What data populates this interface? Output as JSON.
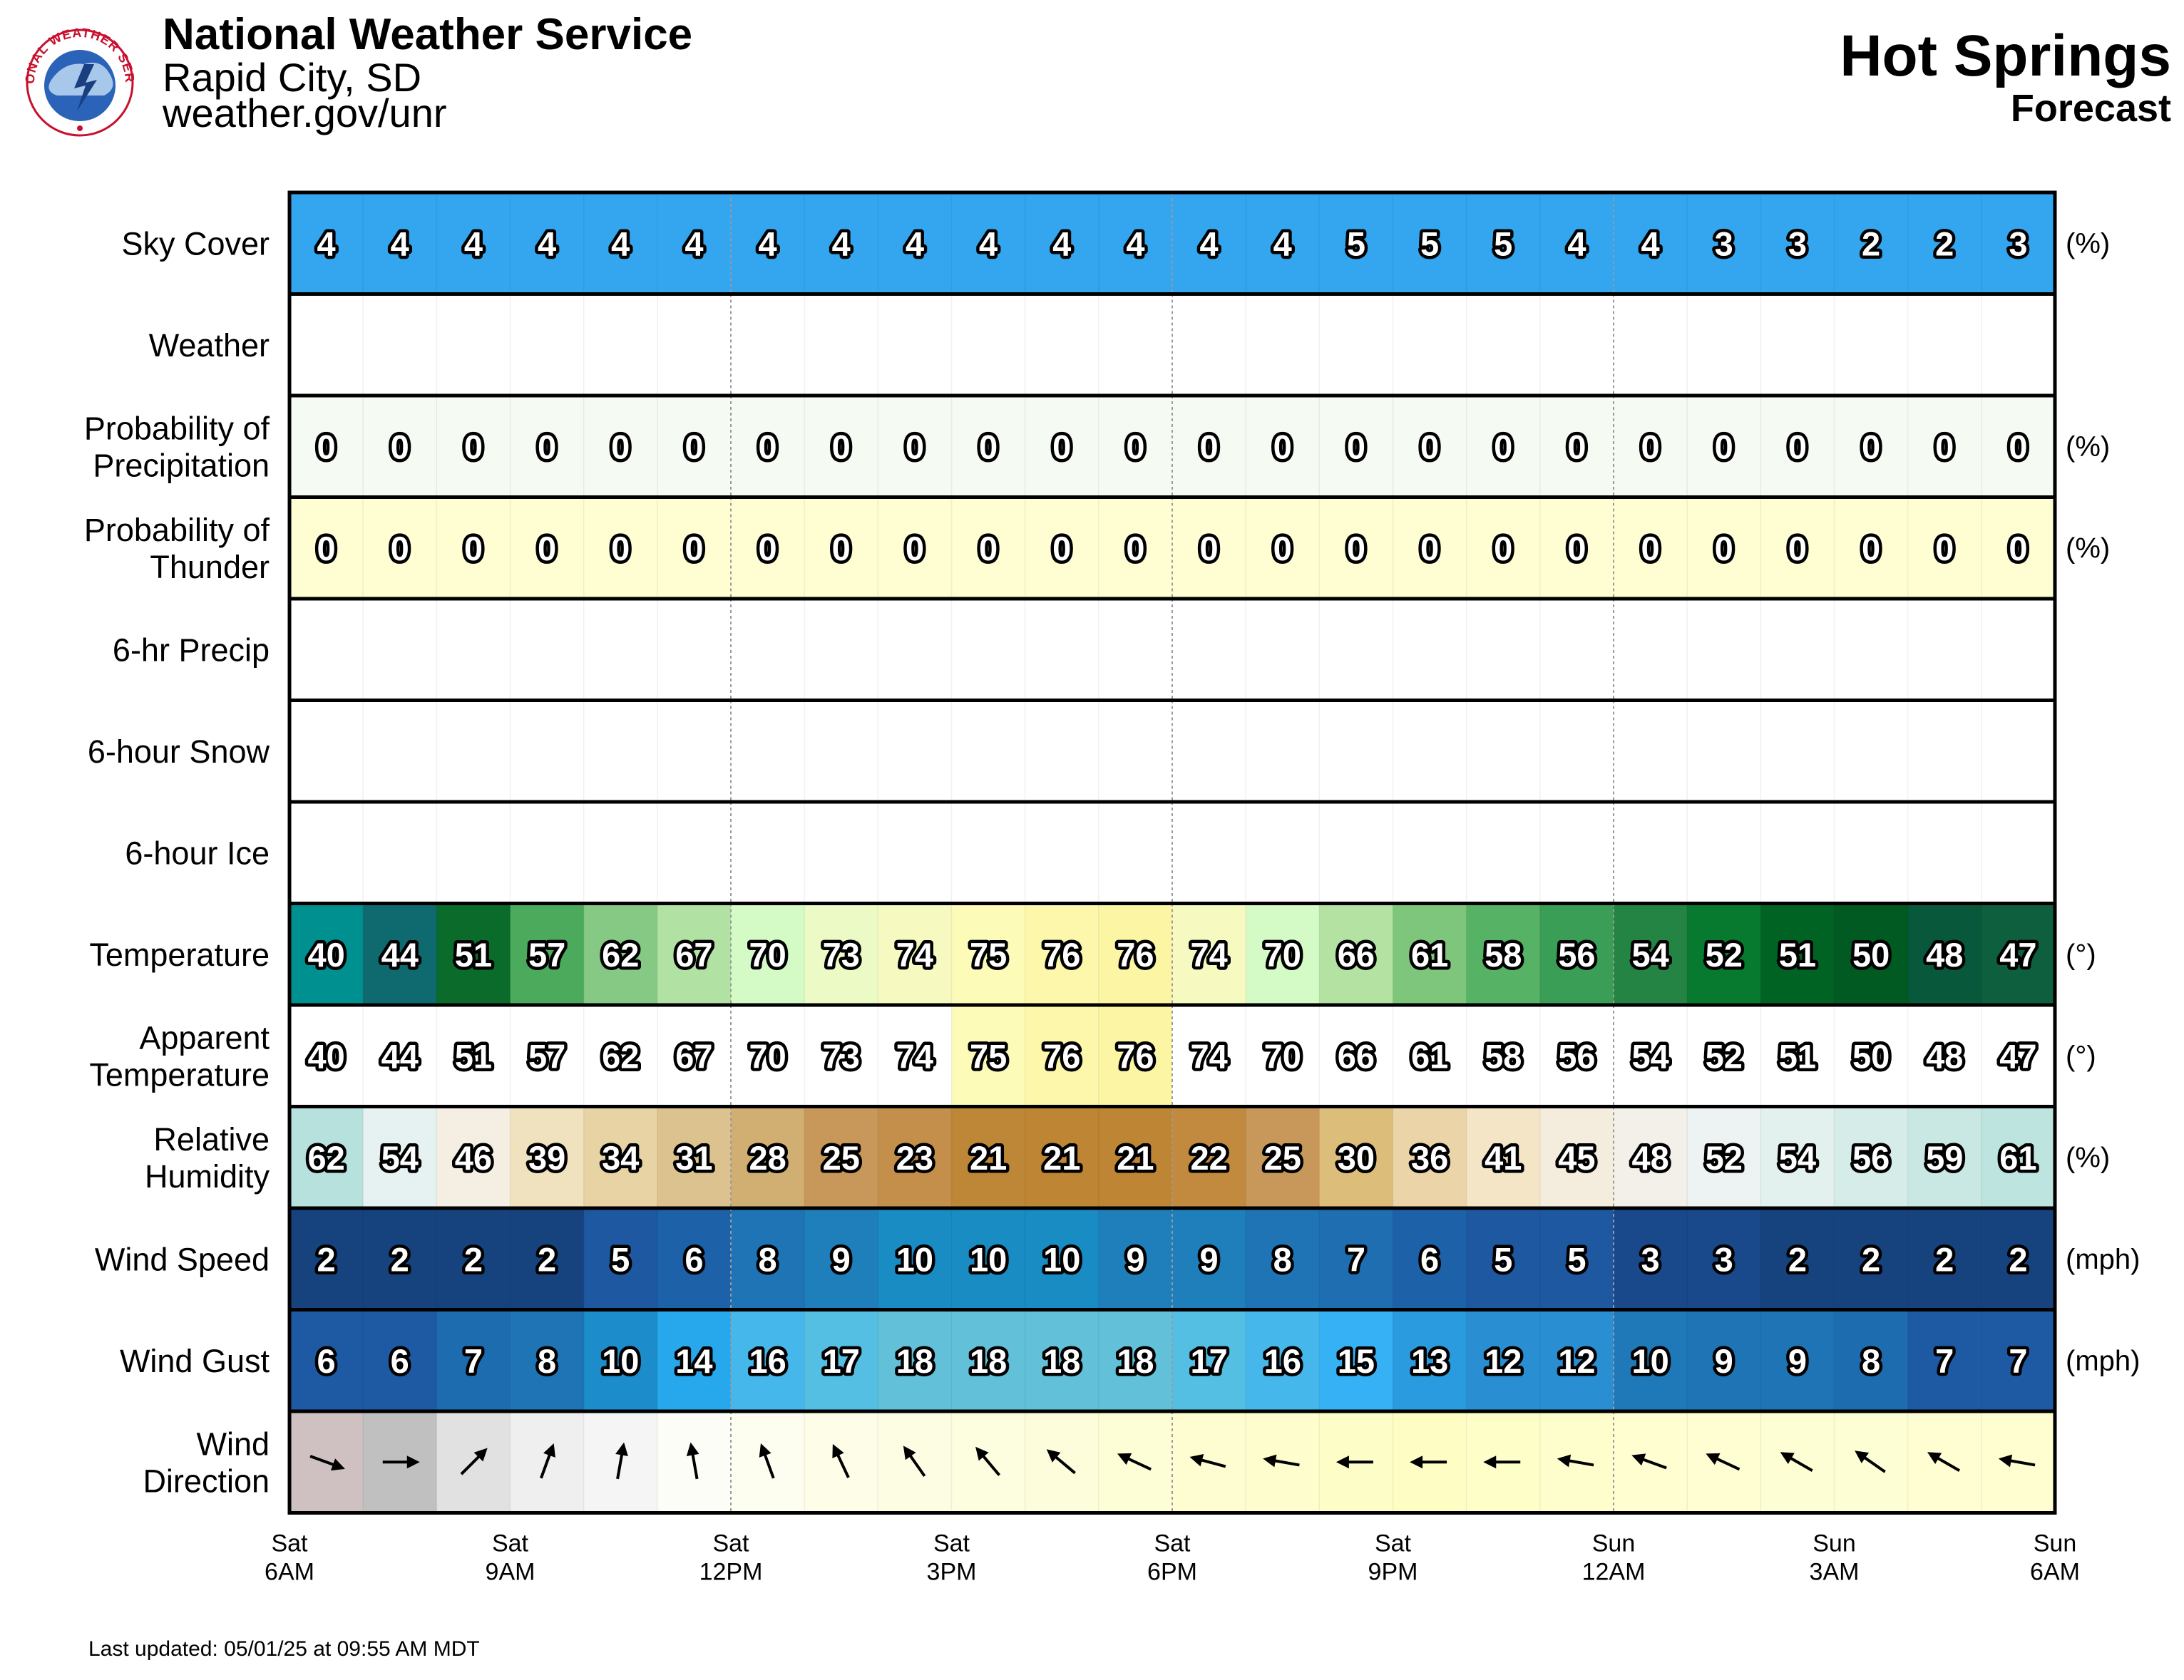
{
  "header": {
    "org": "National Weather Service",
    "city": "Rapid City, SD",
    "url": "weather.gov/unr",
    "logo_text": "NATIONAL WEATHER SERVICE"
  },
  "title": {
    "location": "Hot Springs",
    "subtitle": "Forecast"
  },
  "footer": {
    "updated": "Last updated: 05/01/25 at 09:55 AM MDT"
  },
  "chart_data": {
    "type": "table",
    "hours": [
      "6AM",
      "7AM",
      "8AM",
      "9AM",
      "10AM",
      "11AM",
      "12PM",
      "1PM",
      "2PM",
      "3PM",
      "4PM",
      "5PM",
      "6PM",
      "7PM",
      "8PM",
      "9PM",
      "10PM",
      "11PM",
      "12AM",
      "1AM",
      "2AM",
      "3AM",
      "4AM",
      "5AM",
      "6AM"
    ],
    "x_ticks": [
      {
        "hour_index": 0,
        "day": "Sat",
        "time": "6AM"
      },
      {
        "hour_index": 3,
        "day": "Sat",
        "time": "9AM"
      },
      {
        "hour_index": 6,
        "day": "Sat",
        "time": "12PM"
      },
      {
        "hour_index": 9,
        "day": "Sat",
        "time": "3PM"
      },
      {
        "hour_index": 12,
        "day": "Sat",
        "time": "6PM"
      },
      {
        "hour_index": 15,
        "day": "Sat",
        "time": "9PM"
      },
      {
        "hour_index": 18,
        "day": "Sun",
        "time": "12AM"
      },
      {
        "hour_index": 21,
        "day": "Sun",
        "time": "3AM"
      },
      {
        "hour_index": 24,
        "day": "Sun",
        "time": "6AM"
      }
    ],
    "rows": [
      {
        "label": [
          "Sky Cover"
        ],
        "unit": "(%)",
        "kind": "numeric",
        "scale": "sky",
        "values": [
          4,
          4,
          4,
          4,
          4,
          4,
          4,
          4,
          4,
          4,
          4,
          4,
          4,
          4,
          5,
          5,
          5,
          4,
          4,
          3,
          3,
          2,
          2,
          3
        ]
      },
      {
        "label": [
          "Weather"
        ],
        "unit": "",
        "kind": "blank",
        "values": []
      },
      {
        "label": [
          "Probability of",
          "Precipitation"
        ],
        "unit": "(%)",
        "kind": "numeric",
        "scale": "pop",
        "values": [
          0,
          0,
          0,
          0,
          0,
          0,
          0,
          0,
          0,
          0,
          0,
          0,
          0,
          0,
          0,
          0,
          0,
          0,
          0,
          0,
          0,
          0,
          0,
          0
        ]
      },
      {
        "label": [
          "Probability of",
          "Thunder"
        ],
        "unit": "(%)",
        "kind": "numeric",
        "scale": "thunder",
        "values": [
          0,
          0,
          0,
          0,
          0,
          0,
          0,
          0,
          0,
          0,
          0,
          0,
          0,
          0,
          0,
          0,
          0,
          0,
          0,
          0,
          0,
          0,
          0,
          0
        ]
      },
      {
        "label": [
          "6-hr Precip"
        ],
        "unit": "",
        "kind": "blank",
        "values": []
      },
      {
        "label": [
          "6-hour Snow"
        ],
        "unit": "",
        "kind": "blank",
        "values": []
      },
      {
        "label": [
          "6-hour Ice"
        ],
        "unit": "",
        "kind": "blank",
        "values": []
      },
      {
        "label": [
          "Temperature"
        ],
        "unit": "(°)",
        "kind": "numeric",
        "scale": "temp",
        "values": [
          40,
          44,
          51,
          57,
          62,
          67,
          70,
          73,
          74,
          75,
          76,
          76,
          74,
          70,
          66,
          61,
          58,
          56,
          54,
          52,
          51,
          50,
          48,
          47
        ]
      },
      {
        "label": [
          "Apparent",
          "Temperature"
        ],
        "unit": "(°)",
        "kind": "numeric",
        "scale": "apparent",
        "values": [
          40,
          44,
          51,
          57,
          62,
          67,
          70,
          73,
          74,
          75,
          76,
          76,
          74,
          70,
          66,
          61,
          58,
          56,
          54,
          52,
          51,
          50,
          48,
          47
        ]
      },
      {
        "label": [
          "Relative",
          "Humidity"
        ],
        "unit": "(%)",
        "kind": "numeric",
        "scale": "rh",
        "values": [
          62,
          54,
          46,
          39,
          34,
          31,
          28,
          25,
          23,
          21,
          21,
          21,
          22,
          25,
          30,
          36,
          41,
          45,
          48,
          52,
          54,
          56,
          59,
          61
        ]
      },
      {
        "label": [
          "Wind Speed"
        ],
        "unit": "(mph)",
        "kind": "numeric",
        "scale": "wind",
        "values": [
          2,
          2,
          2,
          2,
          5,
          6,
          8,
          9,
          10,
          10,
          10,
          9,
          9,
          8,
          7,
          6,
          5,
          5,
          3,
          3,
          2,
          2,
          2,
          2
        ]
      },
      {
        "label": [
          "Wind Gust"
        ],
        "unit": "(mph)",
        "kind": "numeric",
        "scale": "gust",
        "values": [
          6,
          6,
          7,
          8,
          10,
          14,
          16,
          17,
          18,
          18,
          18,
          18,
          17,
          16,
          15,
          13,
          12,
          12,
          10,
          9,
          9,
          8,
          7,
          7
        ]
      },
      {
        "label": [
          "Wind",
          "Direction"
        ],
        "unit": "",
        "kind": "arrows",
        "direction_deg": [
          290,
          270,
          225,
          200,
          190,
          170,
          160,
          155,
          145,
          140,
          130,
          115,
          105,
          100,
          90,
          90,
          90,
          100,
          110,
          115,
          120,
          125,
          120,
          100
        ]
      }
    ],
    "colors": {
      "sky": "#33a6ef",
      "pop": "#f5faf2",
      "thunder": "#fefed2",
      "temp": [
        "#00908f",
        "#0f6a6f",
        "#0a6b2b",
        "#4caa5c",
        "#86c985",
        "#b1e2a3",
        "#d4fac5",
        "#ecfbc5",
        "#f6fac1",
        "#fdfbb8",
        "#fdf7ab",
        "#fcf5a4",
        "#f6fac1",
        "#d4fac5",
        "#b3e2a2",
        "#7fc67d",
        "#56b264",
        "#3a9e56",
        "#238443",
        "#077a30",
        "#006324",
        "#005a21",
        "#08583c",
        "#0d5f3e"
      ],
      "apparent": [
        "#ffffff",
        "#ffffff",
        "#ffffff",
        "#ffffff",
        "#ffffff",
        "#ffffff",
        "#ffffff",
        "#ffffff",
        "#ffffff",
        "#fdfbb8",
        "#fdf7ab",
        "#fcf5a4",
        "#ffffff",
        "#ffffff",
        "#ffffff",
        "#ffffff",
        "#ffffff",
        "#ffffff",
        "#ffffff",
        "#ffffff",
        "#ffffff",
        "#ffffff",
        "#ffffff",
        "#ffffff"
      ],
      "rh": [
        "#b6e1dd",
        "#e6f1f1",
        "#f4efe2",
        "#f1e2bf",
        "#e8d3a4",
        "#dcc28e",
        "#d1ae72",
        "#c8985a",
        "#c48f4b",
        "#be8637",
        "#bd8534",
        "#bd8534",
        "#c18a3e",
        "#c8985a",
        "#dcbd7a",
        "#ebd4a8",
        "#f3e5c6",
        "#f4ecdd",
        "#f3f0e9",
        "#edf2f2",
        "#e2f0ee",
        "#d6ece9",
        "#c9e7e3",
        "#bde4df"
      ],
      "wind": [
        "#16437e",
        "#16437e",
        "#16437e",
        "#16437e",
        "#1e58a1",
        "#1d62a9",
        "#1e74b4",
        "#1e7fba",
        "#198cc4",
        "#198cc4",
        "#198cc4",
        "#1e7fba",
        "#1e7fba",
        "#1e74b4",
        "#1e6eb1",
        "#1d62a9",
        "#1e58a1",
        "#1e58a1",
        "#19488b",
        "#19488b",
        "#16437e",
        "#16437e",
        "#16437e",
        "#16437e"
      ],
      "gust": [
        "#1e5aa3",
        "#1e5aa3",
        "#1e6cb0",
        "#1e74b4",
        "#1c8ccb",
        "#28a8ec",
        "#46b7ea",
        "#55bfe3",
        "#62c1d9",
        "#62c1d9",
        "#62c1d9",
        "#62c1d9",
        "#55bfe3",
        "#46b7ea",
        "#36b1f6",
        "#2a9bde",
        "#2a8fd2",
        "#2a8fd2",
        "#1f78b8",
        "#1e74b4",
        "#1e74b4",
        "#1e6cb0",
        "#1e5aa3",
        "#1e5aa3"
      ],
      "winddir": [
        "#cfc1c2",
        "#c0c0c0",
        "#e1e1e1",
        "#efefef",
        "#f5f5f5",
        "#fdfdf7",
        "#fdfdf0",
        "#fdfde8",
        "#fdfde4",
        "#fdfde0",
        "#fdfddc",
        "#fdfdd6",
        "#fdfdd1",
        "#fdfdcd",
        "#fdfdc8",
        "#fefec4",
        "#fefec8",
        "#fefecc",
        "#fefed0",
        "#fefed2",
        "#fefed4",
        "#fefed4",
        "#fefed2",
        "#fefed0"
      ],
      "grid_border": "#000000"
    }
  }
}
